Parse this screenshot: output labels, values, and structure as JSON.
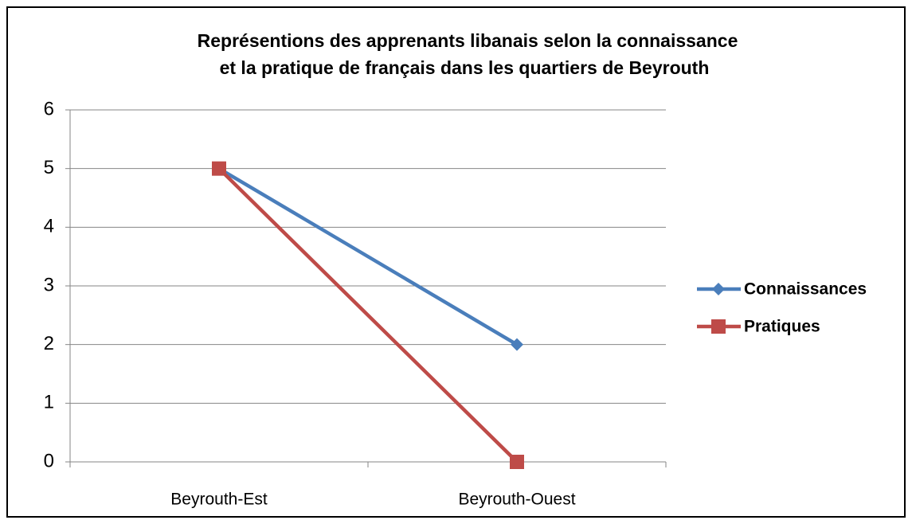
{
  "chart_data": {
    "type": "line",
    "title": [
      "Représentions des apprenants libanais selon la connaissance",
      "et la pratique de français dans les quartiers de Beyrouth"
    ],
    "categories": [
      "Beyrouth-Est",
      "Beyrouth-Ouest"
    ],
    "series": [
      {
        "name": "Connaissances",
        "color": "#4a7ebb",
        "marker": "diamond",
        "values": [
          5,
          2
        ]
      },
      {
        "name": "Pratiques",
        "color": "#be4b48",
        "marker": "square",
        "values": [
          5,
          0
        ]
      }
    ],
    "ylim": [
      0,
      6
    ],
    "yticks": [
      0,
      1,
      2,
      3,
      4,
      5,
      6
    ],
    "grid": true,
    "legend": "right"
  }
}
